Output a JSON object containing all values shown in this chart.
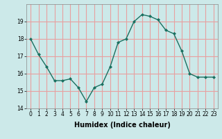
{
  "x": [
    0,
    1,
    2,
    3,
    4,
    5,
    6,
    7,
    8,
    9,
    10,
    11,
    12,
    13,
    14,
    15,
    16,
    17,
    18,
    19,
    20,
    21,
    22,
    23
  ],
  "y": [
    18.0,
    17.1,
    16.4,
    15.6,
    15.6,
    15.7,
    15.2,
    14.4,
    15.2,
    15.4,
    16.4,
    17.8,
    18.0,
    19.0,
    19.4,
    19.3,
    19.1,
    18.5,
    18.3,
    17.3,
    16.0,
    15.8,
    15.8,
    15.8
  ],
  "xlabel": "Humidex (Indice chaleur)",
  "bg_color": "#cce9e9",
  "grid_color": "#e8a0a0",
  "line_color": "#1a7060",
  "marker_color": "#1a7060",
  "ylim": [
    14,
    20
  ],
  "xlim": [
    -0.5,
    23.5
  ],
  "yticks": [
    14,
    15,
    16,
    17,
    18,
    19
  ],
  "xticks": [
    0,
    1,
    2,
    3,
    4,
    5,
    6,
    7,
    8,
    9,
    10,
    11,
    12,
    13,
    14,
    15,
    16,
    17,
    18,
    19,
    20,
    21,
    22,
    23
  ],
  "xlabel_fontsize": 7,
  "tick_fontsize": 5.5,
  "linewidth": 1.0,
  "markersize": 2.0
}
